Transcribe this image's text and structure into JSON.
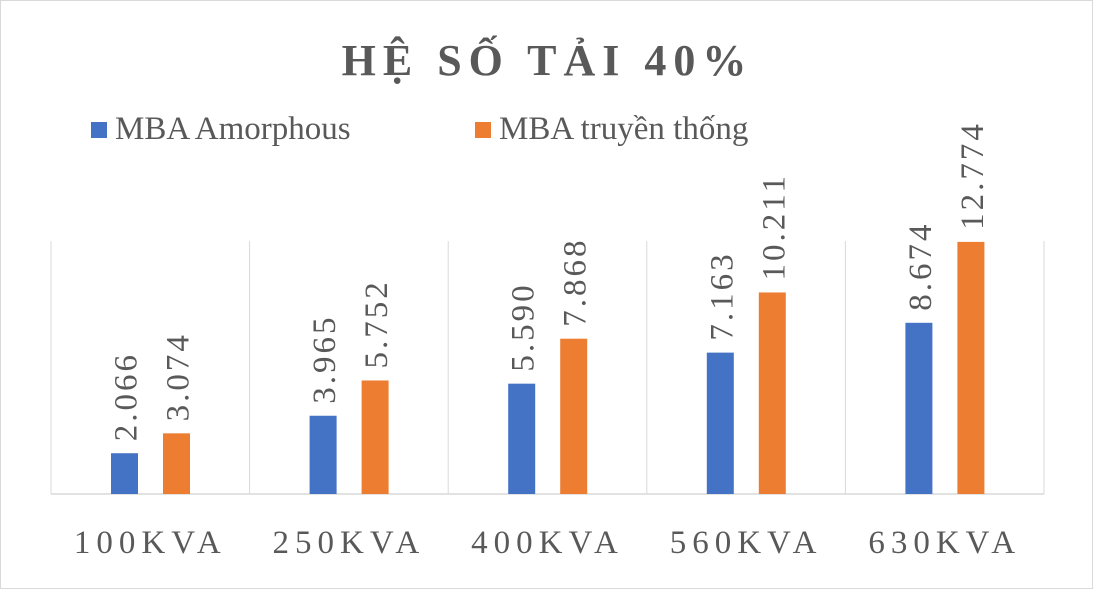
{
  "chart_data": {
    "type": "bar",
    "title": "HỆ SỐ TẢI 40%",
    "categories": [
      "100KVA",
      "250KVA",
      "400KVA",
      "560KVA",
      "630KVA"
    ],
    "series": [
      {
        "name": "MBA Amorphous",
        "color": "#4472C4",
        "values": [
          2.066,
          3.965,
          5.59,
          7.163,
          8.674
        ],
        "labels": [
          "2.066",
          "3.965",
          "5.590",
          "7.163",
          "8.674"
        ]
      },
      {
        "name": "MBA truyền thống",
        "color": "#ED7D31",
        "values": [
          3.074,
          5.752,
          7.868,
          10.211,
          12.774
        ],
        "labels": [
          "3.074",
          "5.752",
          "7.868",
          "10.211",
          "12.774"
        ]
      }
    ],
    "xlabel": "",
    "ylabel": "",
    "ylim": [
      0,
      15.2
    ],
    "grid": "vertical-category-separators",
    "legend_position": "top"
  }
}
